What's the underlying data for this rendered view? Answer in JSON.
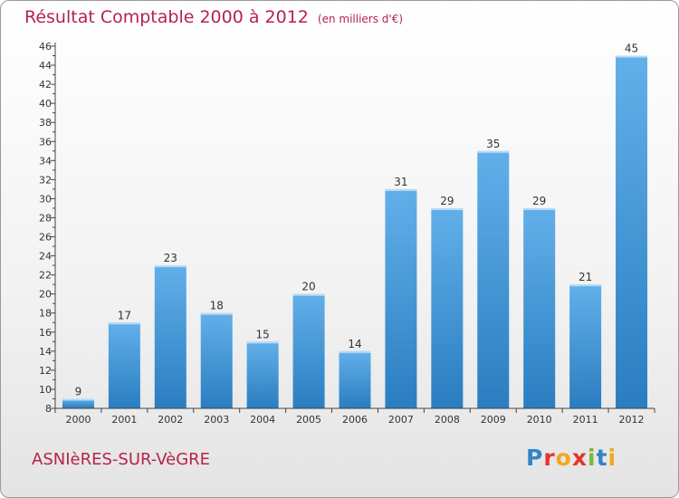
{
  "header": {
    "title": "Résultat Comptable 2000 à 2012",
    "subtitle": "(en milliers d'€)"
  },
  "footer": {
    "place": "ASNIèRES-SUR-VèGRE",
    "logo": "Proxiti"
  },
  "colors": {
    "title": "#b5234b",
    "bar_light": "#62b0ea",
    "bar_dark": "#2a7dc0",
    "axis": "#444444"
  },
  "chart_data": {
    "type": "bar",
    "categories": [
      "2000",
      "2001",
      "2002",
      "2003",
      "2004",
      "2005",
      "2006",
      "2007",
      "2008",
      "2009",
      "2010",
      "2011",
      "2012"
    ],
    "values": [
      9,
      17,
      23,
      18,
      15,
      20,
      14,
      31,
      29,
      35,
      29,
      21,
      45
    ],
    "title": "Résultat Comptable 2000 à 2012",
    "subtitle": "(en milliers d'€)",
    "xlabel": "",
    "ylabel": "",
    "ylim": [
      8,
      46
    ],
    "ytick_step": 2,
    "grid": false,
    "legend": "none"
  }
}
